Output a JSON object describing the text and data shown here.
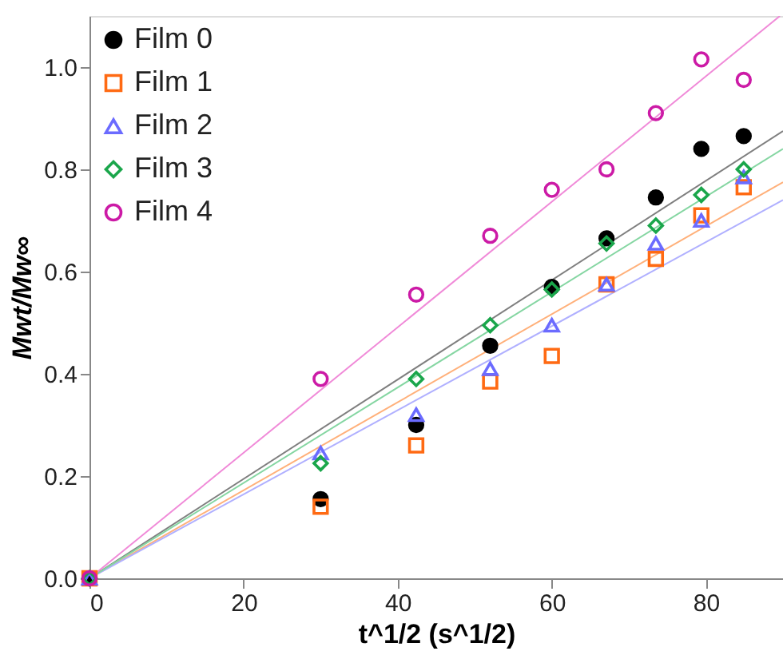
{
  "chart_data": {
    "type": "scatter",
    "xlabel": "t^1/2 (s^1/2)",
    "ylabel": "Mwt/Mw∞",
    "xlim": [
      0,
      90
    ],
    "ylim": [
      0,
      1.1
    ],
    "xticks": [
      0,
      20,
      40,
      60,
      80
    ],
    "yticks": [
      {
        "value": 0,
        "label": "0.0"
      },
      {
        "value": 0.2,
        "label": "0.2"
      },
      {
        "value": 0.4,
        "label": "0.4"
      },
      {
        "value": 0.6,
        "label": "0.6"
      },
      {
        "value": 0.8,
        "label": "0.8"
      },
      {
        "value": 1,
        "label": "1.0"
      }
    ],
    "grid": false,
    "legend": "top left",
    "series": [
      {
        "name": "Film 0",
        "marker": "circle",
        "color": "#000000",
        "x": [
          0,
          30,
          42.4,
          52,
          60,
          67.1,
          73.5,
          79.4,
          84.9
        ],
        "values": [
          0,
          0.155,
          0.3,
          0.455,
          0.57,
          0.665,
          0.745,
          0.84,
          0.865
        ]
      },
      {
        "name": "Film 1",
        "marker": "square",
        "color": "#ff6a13",
        "x": [
          0,
          30,
          42.4,
          52,
          60,
          67.1,
          73.5,
          79.4,
          84.9
        ],
        "values": [
          0,
          0.14,
          0.26,
          0.385,
          0.435,
          0.575,
          0.625,
          0.71,
          0.765
        ]
      },
      {
        "name": "Film 2",
        "marker": "triangle",
        "color": "#6b6bff",
        "x": [
          0,
          30,
          42.4,
          52,
          60,
          67.1,
          73.5,
          79.4,
          84.9
        ],
        "values": [
          0,
          0.245,
          0.32,
          0.41,
          0.495,
          0.575,
          0.655,
          0.7,
          0.785
        ]
      },
      {
        "name": "Film 3",
        "marker": "diamond",
        "color": "#1aa64b",
        "x": [
          0,
          30,
          42.4,
          52,
          60,
          67.1,
          73.5,
          79.4,
          84.9
        ],
        "values": [
          0,
          0.225,
          0.39,
          0.495,
          0.565,
          0.655,
          0.69,
          0.75,
          0.8
        ]
      },
      {
        "name": "Film 4",
        "marker": "circle",
        "color": "#cc1aa6",
        "x": [
          0,
          30,
          42.4,
          52,
          60,
          67.1,
          73.5,
          79.4,
          84.9
        ],
        "values": [
          0,
          0.39,
          0.555,
          0.67,
          0.76,
          0.8,
          0.91,
          1.015,
          0.975
        ]
      },
      {
        "type": "line",
        "color": "#7f7f7f",
        "x": [
          0,
          90
        ],
        "values": [
          0,
          0.875
        ]
      },
      {
        "type": "line",
        "color": "#ffb07a",
        "x": [
          0,
          90
        ],
        "values": [
          0,
          0.775
        ]
      },
      {
        "type": "line",
        "color": "#b0b0ff",
        "x": [
          0,
          90
        ],
        "values": [
          0,
          0.74
        ]
      },
      {
        "type": "line",
        "color": "#85d6a2",
        "x": [
          0,
          90
        ],
        "values": [
          0,
          0.84
        ]
      },
      {
        "type": "line",
        "color": "#f08ad8",
        "x": [
          0,
          89.6
        ],
        "values": [
          0,
          1.1
        ]
      }
    ]
  }
}
